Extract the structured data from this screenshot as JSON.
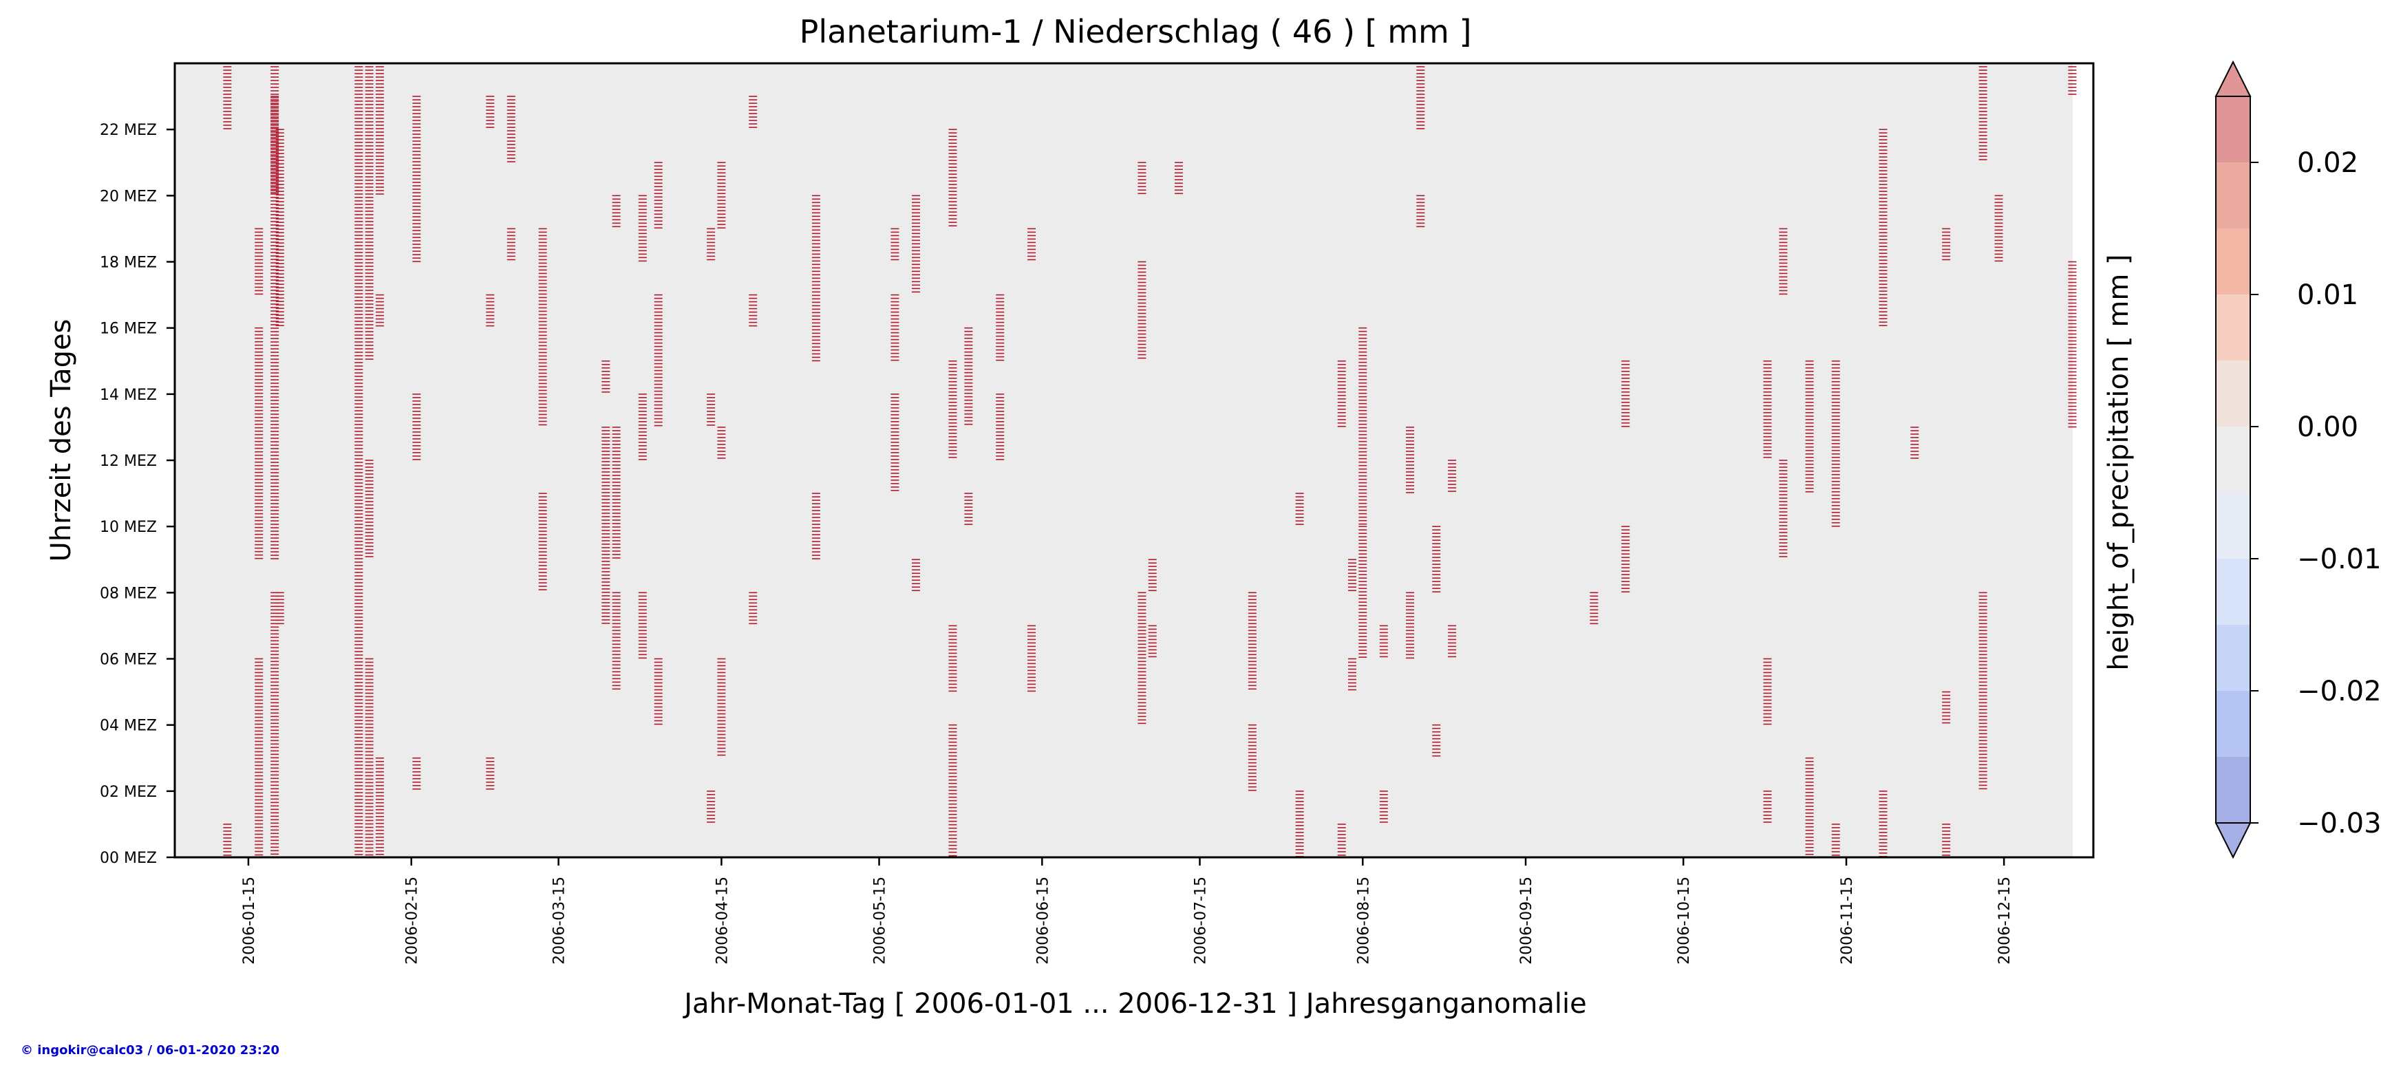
{
  "chart_data": {
    "type": "heatmap",
    "title": "Planetarium-1 / Niederschlag ( 46 ) [ mm ]",
    "xlabel": "Jahr-Monat-Tag [ 2006-01-01 ... 2006-12-31 ] Jahresganganomalie",
    "ylabel": "Uhrzeit des Tages",
    "colorbar_label": "height_of_precipitation [ mm ]",
    "x_tick_labels": [
      "2006-01-15",
      "2006-02-15",
      "2006-03-15",
      "2006-04-15",
      "2006-05-15",
      "2006-06-15",
      "2006-07-15",
      "2006-08-15",
      "2006-09-15",
      "2006-10-15",
      "2006-11-15",
      "2006-12-15"
    ],
    "x_tick_days": [
      14,
      45,
      73,
      104,
      134,
      165,
      195,
      226,
      257,
      287,
      318,
      348
    ],
    "xlim": [
      0,
      365
    ],
    "y_tick_labels": [
      "00 MEZ",
      "02 MEZ",
      "04 MEZ",
      "06 MEZ",
      "08 MEZ",
      "10 MEZ",
      "12 MEZ",
      "14 MEZ",
      "16 MEZ",
      "18 MEZ",
      "20 MEZ",
      "22 MEZ"
    ],
    "y_tick_hours": [
      0,
      2,
      4,
      6,
      8,
      10,
      12,
      14,
      16,
      18,
      20,
      22
    ],
    "ylim": [
      0,
      24
    ],
    "colorbar_tick_labels": [
      "0.02",
      "0.01",
      "0.00",
      "−0.01",
      "−0.02",
      "−0.03"
    ],
    "colorbar_tick_values": [
      0.02,
      0.01,
      0.0,
      -0.01,
      -0.02,
      -0.03
    ],
    "colorbar_range": [
      -0.03,
      0.025
    ],
    "colorbar_levels": [
      -0.03,
      -0.025,
      -0.02,
      -0.015,
      -0.01,
      -0.005,
      0.0,
      0.005,
      0.01,
      0.015,
      0.02,
      0.025
    ],
    "colorbar_colors": [
      "#a6aee6",
      "#b5c4f2",
      "#c6d5f7",
      "#d8e2f8",
      "#e6ebf5",
      "#ececec",
      "#f1e2dc",
      "#f6cfc0",
      "#f3b7a5",
      "#ebaaa0",
      "#e09696"
    ],
    "background_color": "#ececec",
    "event_color": "#b2182b",
    "active_days": [
      {
        "day": 10,
        "hours": [
          [
            0,
            1
          ],
          [
            22,
            24
          ]
        ]
      },
      {
        "day": 16,
        "hours": [
          [
            17,
            19
          ],
          [
            0,
            6
          ],
          [
            9,
            16
          ]
        ]
      },
      {
        "day": 19,
        "hours": [
          [
            0,
            8
          ],
          [
            9,
            24
          ],
          [
            20,
            23
          ]
        ]
      },
      {
        "day": 20,
        "hours": [
          [
            7,
            8
          ],
          [
            16,
            22
          ]
        ]
      },
      {
        "day": 35,
        "hours": [
          [
            0,
            24
          ]
        ]
      },
      {
        "day": 37,
        "hours": [
          [
            0,
            6
          ],
          [
            9,
            12
          ],
          [
            15,
            24
          ]
        ]
      },
      {
        "day": 39,
        "hours": [
          [
            0,
            3
          ],
          [
            16,
            17
          ],
          [
            20,
            24
          ]
        ]
      },
      {
        "day": 46,
        "hours": [
          [
            12,
            14
          ],
          [
            18,
            23
          ],
          [
            2,
            3
          ]
        ]
      },
      {
        "day": 60,
        "hours": [
          [
            16,
            17
          ],
          [
            22,
            23
          ],
          [
            2,
            3
          ]
        ]
      },
      {
        "day": 64,
        "hours": [
          [
            18,
            19
          ],
          [
            21,
            23
          ]
        ]
      },
      {
        "day": 70,
        "hours": [
          [
            8,
            11
          ],
          [
            13,
            19
          ]
        ]
      },
      {
        "day": 82,
        "hours": [
          [
            7,
            13
          ],
          [
            14,
            15
          ]
        ]
      },
      {
        "day": 84,
        "hours": [
          [
            5,
            8
          ],
          [
            9,
            13
          ],
          [
            19,
            20
          ]
        ]
      },
      {
        "day": 89,
        "hours": [
          [
            6,
            8
          ],
          [
            12,
            14
          ],
          [
            18,
            20
          ]
        ]
      },
      {
        "day": 92,
        "hours": [
          [
            4,
            6
          ],
          [
            13,
            17
          ],
          [
            19,
            21
          ]
        ]
      },
      {
        "day": 102,
        "hours": [
          [
            1,
            2
          ],
          [
            13,
            14
          ],
          [
            18,
            19
          ]
        ]
      },
      {
        "day": 104,
        "hours": [
          [
            3,
            6
          ],
          [
            12,
            13
          ],
          [
            19,
            21
          ]
        ]
      },
      {
        "day": 110,
        "hours": [
          [
            7,
            8
          ],
          [
            16,
            17
          ],
          [
            22,
            23
          ]
        ]
      },
      {
        "day": 122,
        "hours": [
          [
            9,
            11
          ],
          [
            15,
            20
          ]
        ]
      },
      {
        "day": 137,
        "hours": [
          [
            11,
            14
          ],
          [
            15,
            17
          ],
          [
            18,
            19
          ]
        ]
      },
      {
        "day": 141,
        "hours": [
          [
            8,
            9
          ],
          [
            17,
            20
          ]
        ]
      },
      {
        "day": 148,
        "hours": [
          [
            0,
            4
          ],
          [
            5,
            7
          ],
          [
            12,
            15
          ],
          [
            19,
            22
          ]
        ]
      },
      {
        "day": 151,
        "hours": [
          [
            10,
            11
          ],
          [
            13,
            16
          ]
        ]
      },
      {
        "day": 157,
        "hours": [
          [
            12,
            14
          ],
          [
            15,
            17
          ]
        ]
      },
      {
        "day": 163,
        "hours": [
          [
            5,
            7
          ],
          [
            18,
            19
          ]
        ]
      },
      {
        "day": 184,
        "hours": [
          [
            4,
            8
          ],
          [
            15,
            18
          ],
          [
            20,
            21
          ]
        ]
      },
      {
        "day": 186,
        "hours": [
          [
            8,
            9
          ],
          [
            6,
            7
          ]
        ]
      },
      {
        "day": 191,
        "hours": [
          [
            20,
            21
          ]
        ]
      },
      {
        "day": 205,
        "hours": [
          [
            2,
            4
          ],
          [
            5,
            8
          ]
        ]
      },
      {
        "day": 214,
        "hours": [
          [
            0,
            2
          ],
          [
            10,
            11
          ]
        ]
      },
      {
        "day": 222,
        "hours": [
          [
            13,
            15
          ],
          [
            0,
            1
          ]
        ]
      },
      {
        "day": 224,
        "hours": [
          [
            8,
            9
          ],
          [
            5,
            6
          ]
        ]
      },
      {
        "day": 226,
        "hours": [
          [
            6,
            10
          ],
          [
            10,
            16
          ]
        ]
      },
      {
        "day": 230,
        "hours": [
          [
            1,
            2
          ],
          [
            6,
            7
          ]
        ]
      },
      {
        "day": 235,
        "hours": [
          [
            6,
            8
          ],
          [
            11,
            13
          ]
        ]
      },
      {
        "day": 237,
        "hours": [
          [
            19,
            20
          ],
          [
            22,
            24
          ]
        ]
      },
      {
        "day": 240,
        "hours": [
          [
            3,
            4
          ],
          [
            8,
            10
          ]
        ]
      },
      {
        "day": 243,
        "hours": [
          [
            11,
            12
          ],
          [
            6,
            7
          ]
        ]
      },
      {
        "day": 270,
        "hours": [
          [
            7,
            8
          ]
        ]
      },
      {
        "day": 276,
        "hours": [
          [
            8,
            10
          ],
          [
            13,
            15
          ]
        ]
      },
      {
        "day": 303,
        "hours": [
          [
            1,
            2
          ],
          [
            4,
            6
          ],
          [
            12,
            15
          ]
        ]
      },
      {
        "day": 306,
        "hours": [
          [
            9,
            12
          ],
          [
            17,
            19
          ]
        ]
      },
      {
        "day": 311,
        "hours": [
          [
            0,
            3
          ],
          [
            11,
            15
          ]
        ]
      },
      {
        "day": 316,
        "hours": [
          [
            0,
            1
          ],
          [
            10,
            15
          ]
        ]
      },
      {
        "day": 325,
        "hours": [
          [
            0,
            2
          ],
          [
            16,
            22
          ]
        ]
      },
      {
        "day": 331,
        "hours": [
          [
            12,
            13
          ]
        ]
      },
      {
        "day": 337,
        "hours": [
          [
            0,
            1
          ],
          [
            4,
            5
          ],
          [
            18,
            19
          ]
        ]
      },
      {
        "day": 344,
        "hours": [
          [
            2,
            8
          ],
          [
            21,
            24
          ]
        ]
      },
      {
        "day": 347,
        "hours": [
          [
            18,
            20
          ]
        ]
      },
      {
        "day": 361,
        "hours": [
          [
            13,
            18
          ],
          [
            23,
            24
          ]
        ]
      }
    ]
  },
  "credit": "© ingokir@calc03 / 06-01-2020 23:20"
}
